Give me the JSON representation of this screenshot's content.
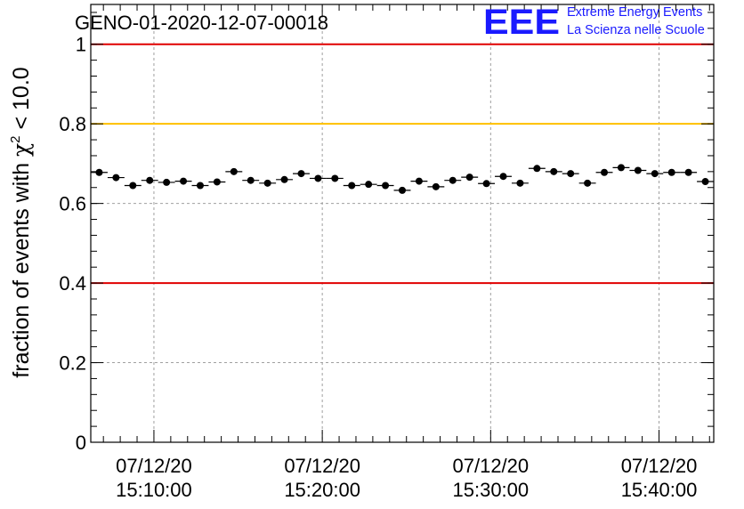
{
  "chart_data": {
    "type": "scatter",
    "title": "GENO-01-2020-12-07-00018",
    "ylabel_prefix": "fraction of events with ",
    "ylabel_symbol": "χ",
    "ylabel_superscript": "2",
    "ylabel_suffix": " < 10.0",
    "xlabel": "",
    "ylim": [
      0,
      1.1
    ],
    "yticks": [
      "0",
      "0.2",
      "0.4",
      "0.6",
      "0.8",
      "1"
    ],
    "ytick_values": [
      0,
      0.2,
      0.4,
      0.6,
      0.8,
      1.0
    ],
    "xlim": [
      "2020-12-07 15:06:15",
      "2020-12-07 15:43:15"
    ],
    "xticks": [
      {
        "date": "07/12/20",
        "time": "15:10:00"
      },
      {
        "date": "07/12/20",
        "time": "15:20:00"
      },
      {
        "date": "07/12/20",
        "time": "15:30:00"
      },
      {
        "date": "07/12/20",
        "time": "15:40:00"
      }
    ],
    "grid": true,
    "reference_lines": [
      {
        "y": 1.0,
        "color": "#e00000"
      },
      {
        "y": 0.8,
        "color": "#ffc000"
      },
      {
        "y": 0.4,
        "color": "#e00000"
      }
    ],
    "bin_width_minutes": 1,
    "x": [
      "15:06:45",
      "15:07:45",
      "15:08:45",
      "15:09:45",
      "15:10:45",
      "15:11:45",
      "15:12:45",
      "15:13:45",
      "15:14:45",
      "15:15:45",
      "15:16:45",
      "15:17:45",
      "15:18:45",
      "15:19:45",
      "15:20:45",
      "15:21:45",
      "15:22:45",
      "15:23:45",
      "15:24:45",
      "15:25:45",
      "15:26:45",
      "15:27:45",
      "15:28:45",
      "15:29:45",
      "15:30:45",
      "15:31:45",
      "15:32:45",
      "15:33:45",
      "15:34:45",
      "15:35:45",
      "15:36:45",
      "15:37:45",
      "15:38:45",
      "15:39:45",
      "15:40:45",
      "15:41:45",
      "15:42:45"
    ],
    "y": [
      0.678,
      0.665,
      0.645,
      0.658,
      0.653,
      0.656,
      0.645,
      0.654,
      0.68,
      0.658,
      0.651,
      0.66,
      0.675,
      0.663,
      0.663,
      0.645,
      0.648,
      0.645,
      0.633,
      0.656,
      0.642,
      0.658,
      0.666,
      0.65,
      0.668,
      0.651,
      0.688,
      0.68,
      0.675,
      0.651,
      0.678,
      0.69,
      0.683,
      0.675,
      0.678,
      0.678,
      0.655
    ],
    "marker_color": "#000000"
  },
  "logo": {
    "letters": "EEE",
    "line1": "Extreme Energy Events",
    "line2": "La Scienza nelle Scuole",
    "color": "#1a1aff"
  }
}
